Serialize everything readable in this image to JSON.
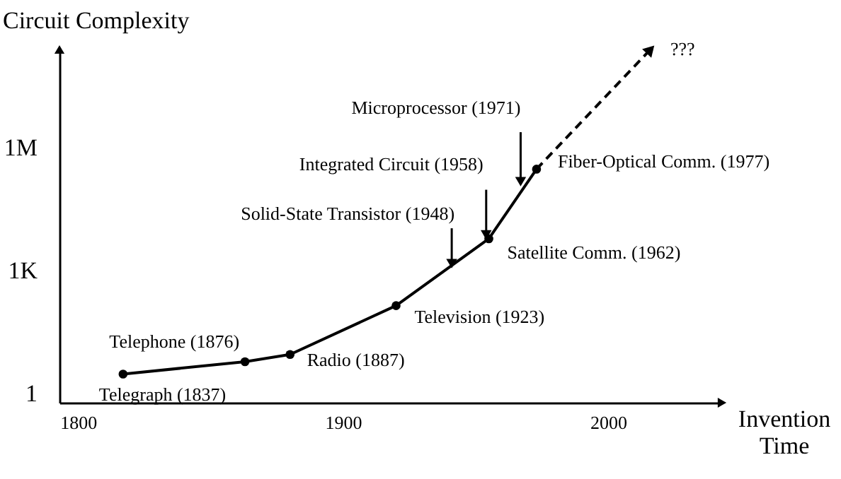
{
  "chart_data": {
    "type": "line",
    "xlabel": "Invention Time",
    "ylabel": "Circuit Complexity",
    "xlim": [
      1793,
      2043
    ],
    "xticks": [
      1800,
      1900,
      2000
    ],
    "ylim": [
      0.6,
      250000000
    ],
    "log": "y",
    "yticks": [
      {
        "value": 1,
        "label": "1"
      },
      {
        "value": 1000,
        "label": "1K"
      },
      {
        "value": 1000000,
        "label": "1M"
      }
    ],
    "series": [
      {
        "type": "line",
        "color": "#000000",
        "marker": "circle",
        "line_style": "solid",
        "x": [
          1817,
          1863,
          1880,
          1920,
          1955,
          1973
        ],
        "values": [
          3,
          6,
          9,
          140,
          6000,
          300000
        ]
      },
      {
        "type": "line",
        "color": "#000000",
        "line_style": "dashed",
        "x": [
          1973,
          2016
        ],
        "values": [
          300000,
          250000000
        ]
      }
    ],
    "annotations": [
      {
        "text": "Telegraph (1837)",
        "x": 1817,
        "y": 3
      },
      {
        "text": "Telephone (1876)",
        "x": 1863,
        "y": 6
      },
      {
        "text": "Radio (1887)",
        "x": 1880,
        "y": 9
      },
      {
        "text": "Television (1923)",
        "x": 1920,
        "y": 140
      },
      {
        "text": "Satellite Comm. (1962)",
        "x": 1955,
        "y": 6000
      },
      {
        "text": "Fiber-Optical Comm. (1977)",
        "x": 1973,
        "y": 300000
      },
      {
        "text": "???",
        "x": 2016,
        "y": 250000000
      },
      {
        "text": "Solid-State Transistor (1948)",
        "x": 1941,
        "y": 1000
      },
      {
        "text": "Integrated Circuit (1958)",
        "x": 1954,
        "y": 5000
      },
      {
        "text": "Microprocessor (1971)",
        "x": 1967,
        "y": 100000
      }
    ],
    "grid": false
  }
}
